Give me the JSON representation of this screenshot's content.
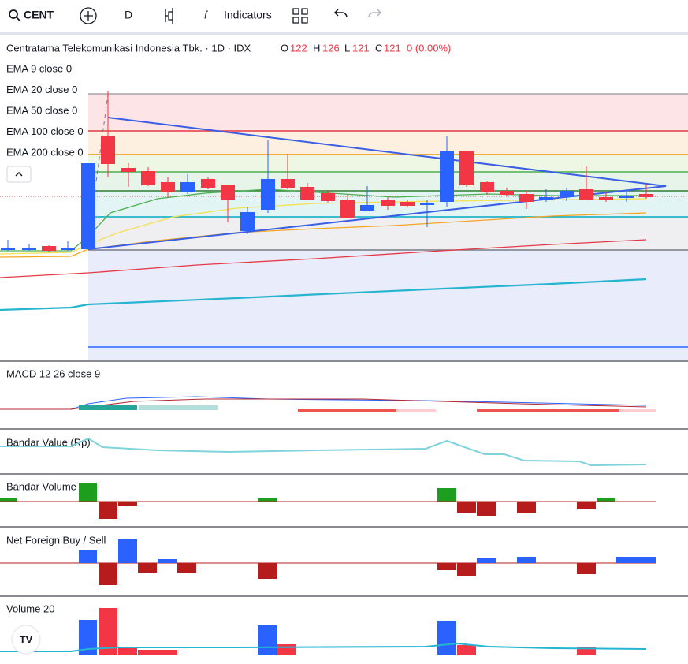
{
  "toolbar": {
    "symbol": "CENT",
    "interval": "D",
    "indicators": "Indicators"
  },
  "legend": {
    "name": "Centratama Telekomunikasi Indonesia Tbk. · 1D · IDX",
    "open_label": "O",
    "open": "122",
    "high_label": "H",
    "high": "126",
    "low_label": "L",
    "low": "121",
    "close_label": "C",
    "close": "121",
    "change": "0 (0.00%)"
  },
  "ema_labels": [
    "EMA 9 close 0",
    "EMA 20 close 0",
    "EMA 50 close 0",
    "EMA 100 close 0",
    "EMA 200 close 0"
  ],
  "panes": [
    "MACD 12 26 close 9",
    "Bandar Value (Rp)",
    "Bandar Volume",
    "Net Foreign Buy / Sell",
    "Volume 20"
  ]
}
